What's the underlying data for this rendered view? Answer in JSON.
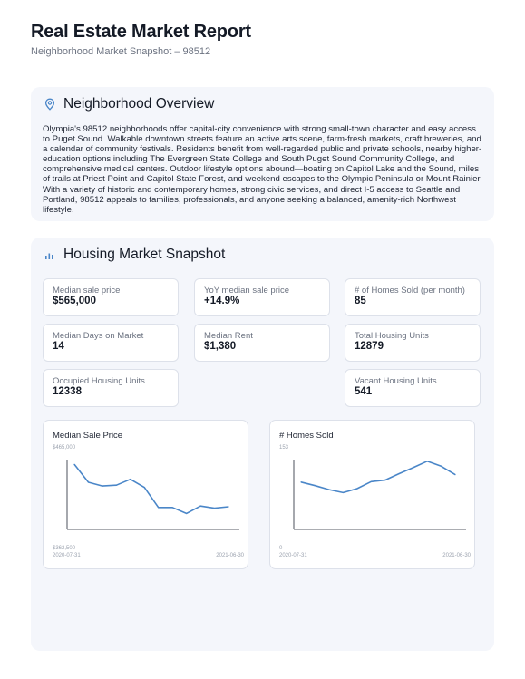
{
  "report": {
    "title": "Real Estate Market Report",
    "subtitle": "Neighborhood Market Snapshot – 98512"
  },
  "overview": {
    "heading": "Neighborhood Overview",
    "icon": "map-pin-icon",
    "text": "Olympia's 98512 neighborhoods offer capital-city convenience with strong small-town character and easy access to Puget Sound. Walkable downtown streets feature an active arts scene, farm-fresh markets, craft breweries, and a calendar of community festivals. Residents benefit from well-regarded public and private schools, nearby higher-education options including The Evergreen State College and South Puget Sound Community College, and comprehensive medical centers. Outdoor lifestyle options abound—boating on Capitol Lake and the Sound, miles of trails at Priest Point and Capitol State Forest, and weekend escapes to the Olympic Peninsula or Mount Rainier. With a variety of historic and contemporary homes, strong civic services, and direct I-5 access to Seattle and Portland, 98512 appeals to families, professionals, and anyone seeking a balanced, amenity-rich Northwest lifestyle."
  },
  "snapshot": {
    "heading": "Housing Market Snapshot",
    "icon": "bar-chart-icon",
    "metrics": {
      "median_sale_price": {
        "label": "Median sale price",
        "value": "$565,000"
      },
      "yoy_median": {
        "label": "YoY median sale price",
        "value": "+14.9%"
      },
      "homes_sold": {
        "label": "# of Homes Sold (per month)",
        "value": "85"
      },
      "days_on_market": {
        "label": "Median Days on Market",
        "value": "14"
      },
      "median_rent": {
        "label": "Median Rent",
        "value": "$1,380"
      },
      "total_units": {
        "label": "Total Housing Units",
        "value": "12879"
      },
      "occupied_units": {
        "label": "Occupied Housing Units",
        "value": "12338"
      },
      "vacant_units": {
        "label": "Vacant Housing Units",
        "value": "541"
      }
    }
  },
  "accent_color": "#4a86c8",
  "chart_data": [
    {
      "type": "line",
      "title": "Median Sale Price",
      "ymax_label": "$465,000",
      "ymin_label": "$362,500",
      "xstart_label": "2020-07-31",
      "xend_label": "2021-06-30",
      "ylim": [
        362500,
        465000
      ],
      "values": [
        450000,
        426000,
        421000,
        422000,
        430000,
        419000,
        392000,
        392000,
        384000,
        394000,
        391000,
        393000
      ]
    },
    {
      "type": "line",
      "title": "# Homes Sold",
      "ymax_label": "153",
      "ymin_label": "0",
      "xstart_label": "2020-07-31",
      "xend_label": "2021-06-30",
      "ylim": [
        0,
        153
      ],
      "values": [
        95,
        88,
        80,
        74,
        82,
        96,
        99,
        112,
        124,
        137,
        127,
        110
      ]
    }
  ]
}
